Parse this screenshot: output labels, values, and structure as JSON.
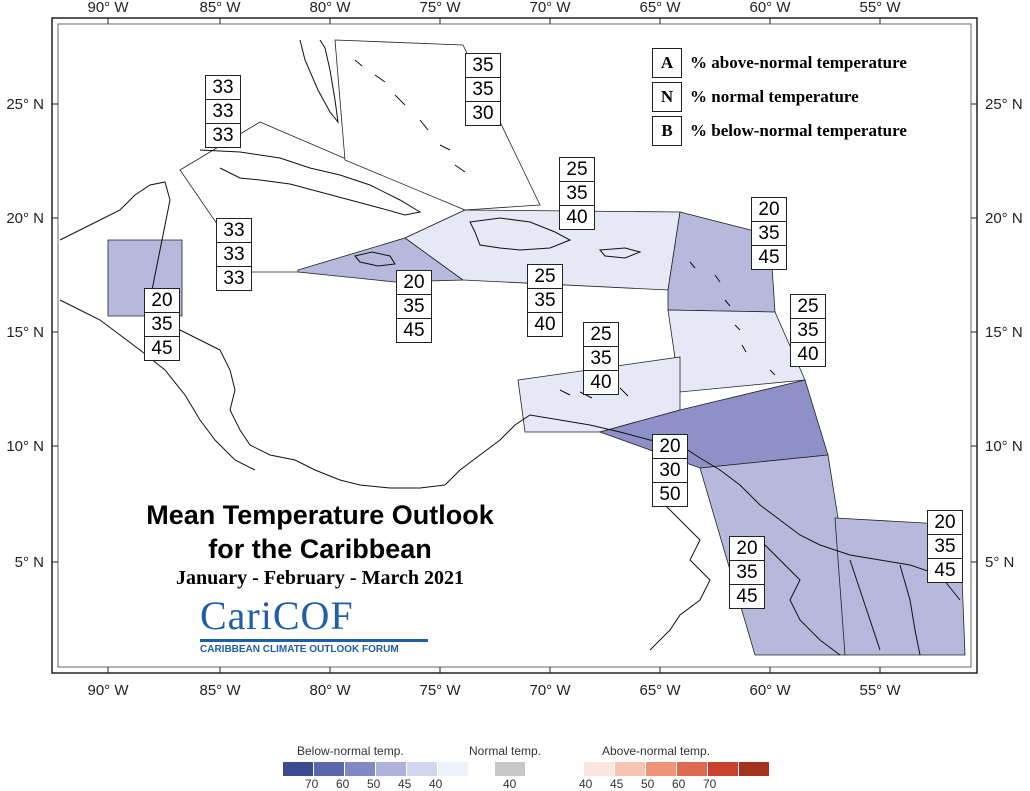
{
  "map": {
    "lon_ticks_top": [
      "90° W",
      "85° W",
      "80° W",
      "75° W",
      "70° W",
      "65° W",
      "60° W",
      "55° W"
    ],
    "lon_ticks_bottom": [
      "90° W",
      "85° W",
      "80° W",
      "75° W",
      "70° W",
      "65° W",
      "60° W",
      "55° W"
    ],
    "lat_ticks_left": [
      "25° N",
      "20° N",
      "15° N",
      "10° N",
      "5° N"
    ],
    "lat_ticks_right": [
      "25° N",
      "20° N",
      "15° N",
      "10° N",
      "5° N"
    ]
  },
  "key": {
    "rows": [
      {
        "letter": "A",
        "text": "% above-normal temperature"
      },
      {
        "letter": "N",
        "text": "% normal temperature"
      },
      {
        "letter": "B",
        "text": "% below-normal temperature"
      }
    ]
  },
  "regions": [
    {
      "name": "florida-bahamas",
      "a": "35",
      "n": "35",
      "b": "30",
      "color": "#ffffff"
    },
    {
      "name": "cuba-west",
      "a": "33",
      "n": "33",
      "b": "33",
      "color": "#ffffff"
    },
    {
      "name": "cayman",
      "a": "33",
      "n": "33",
      "b": "33",
      "color": "#ffffff"
    },
    {
      "name": "jamaica",
      "a": "20",
      "n": "35",
      "b": "45",
      "color": "#b6b9dc"
    },
    {
      "name": "belize",
      "a": "20",
      "n": "35",
      "b": "45",
      "color": "#b6b9dc"
    },
    {
      "name": "hispaniola-pr",
      "a": "25",
      "n": "35",
      "b": "40",
      "color": "#e6e8f6"
    },
    {
      "name": "turks-caicos",
      "a": "25",
      "n": "35",
      "b": "40",
      "color": "#e6e8f6"
    },
    {
      "name": "leeward-islands",
      "a": "20",
      "n": "35",
      "b": "45",
      "color": "#b6b9dc"
    },
    {
      "name": "windward-islands",
      "a": "25",
      "n": "35",
      "b": "40",
      "color": "#e6e8f6"
    },
    {
      "name": "abc-islands",
      "a": "25",
      "n": "35",
      "b": "40",
      "color": "#e6e8f6"
    },
    {
      "name": "trinidad-tobago",
      "a": "20",
      "n": "30",
      "b": "50",
      "color": "#8e91c8"
    },
    {
      "name": "guyana",
      "a": "20",
      "n": "35",
      "b": "45",
      "color": "#b6b9dc"
    },
    {
      "name": "suriname-guiana",
      "a": "20",
      "n": "35",
      "b": "45",
      "color": "#b6b9dc"
    }
  ],
  "title": {
    "line1": "Mean Temperature Outlook",
    "line2": "for the Caribbean",
    "period": "January - February - March 2021"
  },
  "logo": {
    "word": "CariCOF",
    "subtitle": "CARIBBEAN CLIMATE OUTLOOK FORUM"
  },
  "legend": {
    "below_title": "Below-normal temp.",
    "normal_title": "Normal temp.",
    "above_title": "Above-normal temp.",
    "below_colors": [
      "#3c4a91",
      "#5a67ad",
      "#8288c4",
      "#aeb2da",
      "#d3d6ee",
      "#eef0fa"
    ],
    "below_labels": [
      "70",
      "60",
      "50",
      "45",
      "40"
    ],
    "normal_color": "#c8c8c8",
    "normal_label": "40",
    "above_colors": [
      "#fbe7df",
      "#f6c4b3",
      "#ef9478",
      "#e06a4f",
      "#c8432d",
      "#a5321f"
    ],
    "above_labels": [
      "40",
      "45",
      "50",
      "60",
      "70"
    ]
  }
}
